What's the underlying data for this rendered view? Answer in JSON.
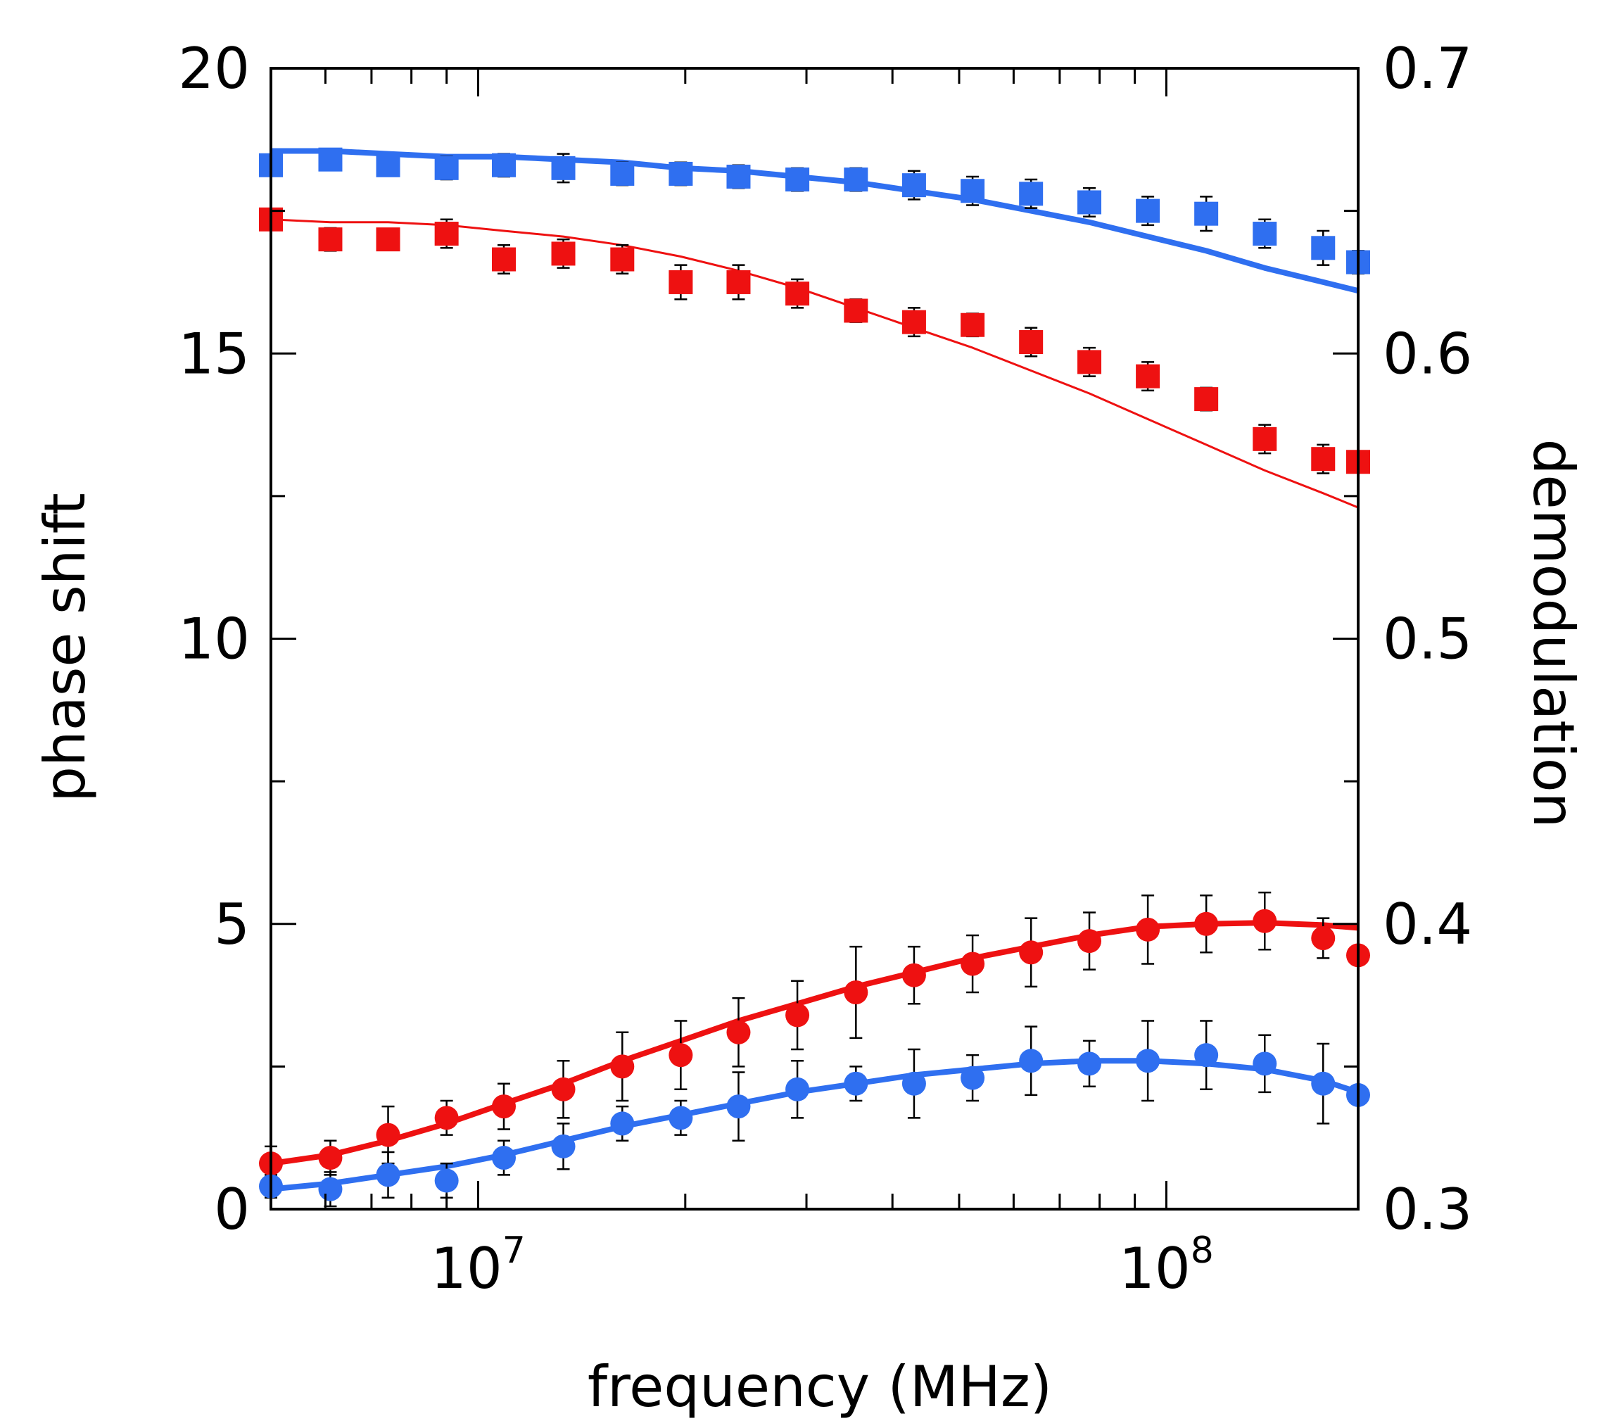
{
  "chart_data": {
    "type": "scatter",
    "xlabel": "frequency (MHz)",
    "ylabel_left": "phase shift",
    "ylabel_right": "demodulation",
    "xscale": "log",
    "xlim": [
      5000000,
      190000000
    ],
    "ylim_left": [
      0,
      20
    ],
    "ylim_right": [
      0.3,
      0.7
    ],
    "x_tick_labels": [
      {
        "value": 10000000,
        "base": "10",
        "exp": "7"
      },
      {
        "value": 100000000,
        "base": "10",
        "exp": "8"
      }
    ],
    "y_left_ticks": [
      0,
      5,
      10,
      15,
      20
    ],
    "y_left_tick_labels": [
      "0",
      "5",
      "10",
      "15",
      "20"
    ],
    "y_right_ticks": [
      0.3,
      0.4,
      0.5,
      0.6,
      0.7
    ],
    "y_right_tick_labels": [
      "0.3",
      "0.4",
      "0.5",
      "0.6",
      "0.7"
    ],
    "colors": {
      "red": "#ee1111",
      "blue": "#2f6ff0",
      "axis": "#000000"
    },
    "x": [
      5000000,
      6100000,
      7400000,
      9000000,
      10900000,
      13300000,
      16200000,
      19700000,
      23900000,
      29100000,
      35400000,
      43000000,
      52300000,
      63600000,
      77300000,
      94000000,
      114300000,
      139000000,
      169000000,
      190000000
    ],
    "series": [
      {
        "axis": "right",
        "marker": "square",
        "color": "#2f6ff0",
        "x_index": [
          0,
          1,
          2,
          3,
          4,
          5,
          6,
          7,
          8,
          9,
          10,
          11,
          12,
          13,
          14,
          15,
          16,
          17,
          18,
          19
        ],
        "values": [
          0.666,
          0.668,
          0.666,
          0.665,
          0.666,
          0.665,
          0.663,
          0.663,
          0.662,
          0.661,
          0.661,
          0.659,
          0.657,
          0.656,
          0.653,
          0.65,
          0.649,
          0.642,
          0.637,
          0.632
        ],
        "errors": [
          0.003,
          0.003,
          0.003,
          0.004,
          0.004,
          0.005,
          0.004,
          0.004,
          0.004,
          0.004,
          0.004,
          0.005,
          0.005,
          0.005,
          0.005,
          0.005,
          0.006,
          0.005,
          0.006,
          0.004
        ],
        "fit": [
          0.671,
          0.671,
          0.67,
          0.669,
          0.669,
          0.668,
          0.667,
          0.665,
          0.664,
          0.662,
          0.66,
          0.657,
          0.654,
          0.65,
          0.646,
          0.641,
          0.636,
          0.63,
          0.625,
          0.622
        ]
      },
      {
        "axis": "right",
        "marker": "square",
        "color": "#ee1111",
        "x_index": [
          0,
          1,
          2,
          3,
          4,
          5,
          6,
          7,
          8,
          9,
          10,
          11,
          12,
          13,
          14,
          15,
          16,
          17,
          18,
          19
        ],
        "values": [
          0.647,
          0.64,
          0.64,
          0.642,
          0.633,
          0.635,
          0.633,
          0.625,
          0.625,
          0.621,
          0.615,
          0.611,
          0.61,
          0.604,
          0.597,
          0.592,
          0.584,
          0.57,
          0.563,
          0.562
        ],
        "errors": [
          0.003,
          0.004,
          0.003,
          0.005,
          0.005,
          0.005,
          0.005,
          0.006,
          0.006,
          0.005,
          0.004,
          0.005,
          0.004,
          0.005,
          0.005,
          0.005,
          0.004,
          0.005,
          0.005,
          0.003
        ],
        "fit": [
          0.647,
          0.646,
          0.646,
          0.645,
          0.643,
          0.641,
          0.638,
          0.634,
          0.629,
          0.623,
          0.616,
          0.609,
          0.602,
          0.594,
          0.586,
          0.577,
          0.568,
          0.559,
          0.551,
          0.546
        ]
      },
      {
        "axis": "left",
        "marker": "circle",
        "color": "#ee1111",
        "x_index": [
          0,
          1,
          2,
          3,
          4,
          5,
          6,
          7,
          8,
          9,
          10,
          11,
          12,
          13,
          14,
          15,
          16,
          17,
          18,
          19
        ],
        "values": [
          0.8,
          0.9,
          1.3,
          1.6,
          1.8,
          2.1,
          2.5,
          2.7,
          3.1,
          3.4,
          3.8,
          4.1,
          4.3,
          4.5,
          4.7,
          4.9,
          5.0,
          5.05,
          4.75,
          4.45
        ],
        "errors": [
          0.3,
          0.3,
          0.5,
          0.3,
          0.4,
          0.5,
          0.6,
          0.6,
          0.6,
          0.6,
          0.8,
          0.5,
          0.5,
          0.6,
          0.5,
          0.6,
          0.5,
          0.5,
          0.35,
          0.0
        ],
        "fit": [
          0.8,
          0.95,
          1.2,
          1.5,
          1.85,
          2.2,
          2.6,
          2.95,
          3.3,
          3.6,
          3.9,
          4.15,
          4.4,
          4.6,
          4.8,
          4.95,
          5.0,
          5.02,
          4.98,
          4.93
        ]
      },
      {
        "axis": "left",
        "marker": "circle",
        "color": "#2f6ff0",
        "x_index": [
          0,
          1,
          2,
          3,
          4,
          5,
          6,
          7,
          8,
          9,
          10,
          11,
          12,
          13,
          14,
          15,
          16,
          17,
          18,
          19
        ],
        "values": [
          0.4,
          0.35,
          0.6,
          0.5,
          0.9,
          1.1,
          1.5,
          1.6,
          1.8,
          2.1,
          2.2,
          2.2,
          2.3,
          2.6,
          2.55,
          2.6,
          2.7,
          2.55,
          2.2,
          2.0
        ],
        "errors": [
          0.2,
          0.3,
          0.4,
          0.3,
          0.3,
          0.4,
          0.3,
          0.3,
          0.6,
          0.5,
          0.3,
          0.6,
          0.4,
          0.6,
          0.4,
          0.7,
          0.6,
          0.5,
          0.7,
          0.0
        ],
        "fit": [
          0.35,
          0.45,
          0.6,
          0.75,
          0.95,
          1.2,
          1.45,
          1.65,
          1.85,
          2.05,
          2.2,
          2.35,
          2.45,
          2.55,
          2.6,
          2.6,
          2.55,
          2.45,
          2.25,
          2.05
        ]
      }
    ]
  }
}
